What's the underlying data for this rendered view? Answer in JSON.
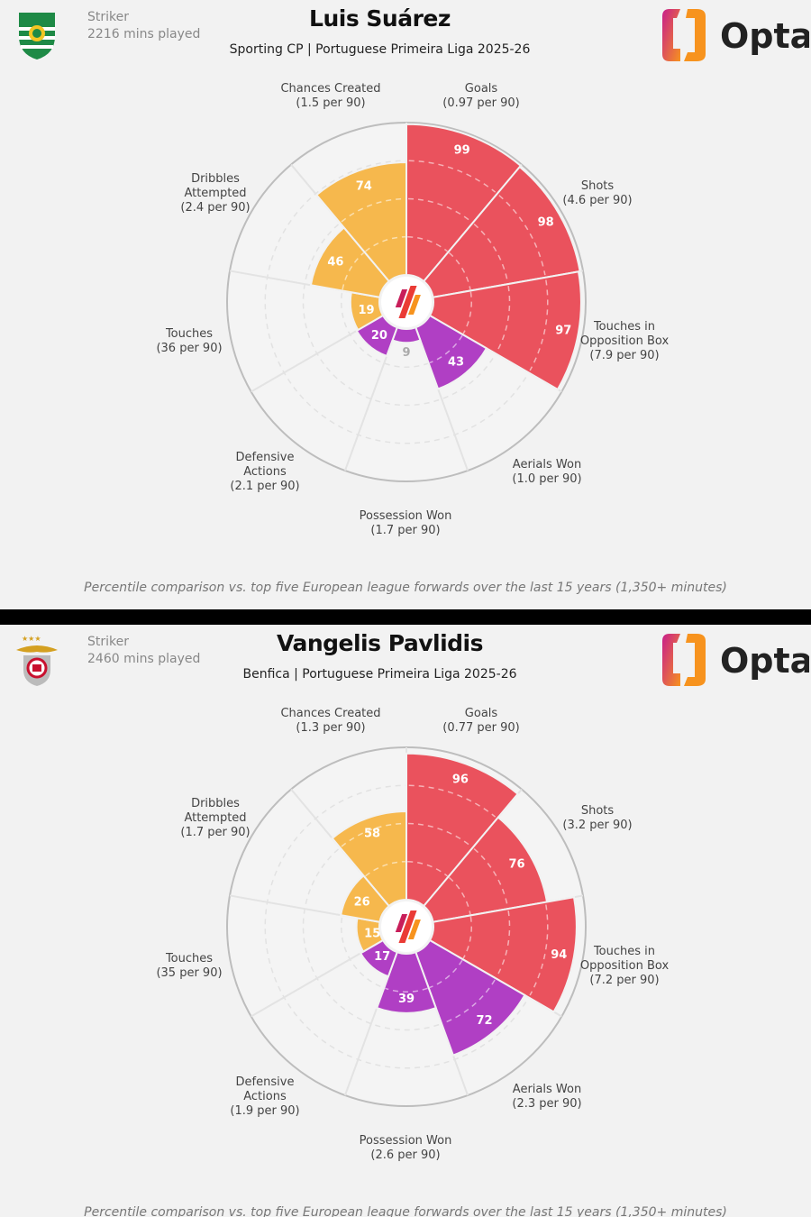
{
  "colors": {
    "attacking": "#ea525d",
    "possession": "#f6b84d",
    "defending": "#b03fc4",
    "background": "#f2f2f2"
  },
  "panels": [
    {
      "player": "Luis Suárez",
      "position": "Striker",
      "minutes": "2216 mins played",
      "subtitle": "Sporting CP | Portuguese Primeira Liga 2025-26",
      "crest": "sporting-cp-crest",
      "logo": "Opta",
      "footnote": "Percentile comparison vs. top five European league forwards over the last 15 years (1,350+ minutes)"
    },
    {
      "player": "Vangelis Pavlidis",
      "position": "Striker",
      "minutes": "2460 mins played",
      "subtitle": "Benfica | Portuguese Primeira Liga 2025-26",
      "crest": "benfica-crest",
      "logo": "Opta",
      "footnote": "Percentile comparison vs. top five European league forwards over the last 15 years (1,350+ minutes)"
    }
  ],
  "chart_data": [
    {
      "type": "pie",
      "subtype": "polar-area percentile",
      "range": [
        0,
        100
      ],
      "categories": [
        {
          "name": [
            "Goals"
          ],
          "per90": "(0.97 per 90)",
          "value": 99,
          "group": "attacking"
        },
        {
          "name": [
            "Shots"
          ],
          "per90": "(4.6 per 90)",
          "value": 98,
          "group": "attacking"
        },
        {
          "name": [
            "Touches in",
            "Opposition Box"
          ],
          "per90": "(7.9 per 90)",
          "value": 97,
          "group": "attacking"
        },
        {
          "name": [
            "Aerials Won"
          ],
          "per90": "(1.0 per 90)",
          "value": 43,
          "group": "defending"
        },
        {
          "name": [
            "Possession Won"
          ],
          "per90": "(1.7 per 90)",
          "value": 9,
          "group": "defending"
        },
        {
          "name": [
            "Defensive",
            "Actions"
          ],
          "per90": "(2.1 per 90)",
          "value": 20,
          "group": "defending"
        },
        {
          "name": [
            "Touches"
          ],
          "per90": "(36 per 90)",
          "value": 19,
          "group": "possession"
        },
        {
          "name": [
            "Dribbles",
            "Attempted"
          ],
          "per90": "(2.4 per 90)",
          "value": 46,
          "group": "possession"
        },
        {
          "name": [
            "Chances Created"
          ],
          "per90": "(1.5 per 90)",
          "value": 74,
          "group": "possession"
        }
      ]
    },
    {
      "type": "pie",
      "subtype": "polar-area percentile",
      "range": [
        0,
        100
      ],
      "categories": [
        {
          "name": [
            "Goals"
          ],
          "per90": "(0.77 per 90)",
          "value": 96,
          "group": "attacking"
        },
        {
          "name": [
            "Shots"
          ],
          "per90": "(3.2 per 90)",
          "value": 76,
          "group": "attacking"
        },
        {
          "name": [
            "Touches in",
            "Opposition Box"
          ],
          "per90": "(7.2 per 90)",
          "value": 94,
          "group": "attacking"
        },
        {
          "name": [
            "Aerials Won"
          ],
          "per90": "(2.3 per 90)",
          "value": 72,
          "group": "defending"
        },
        {
          "name": [
            "Possession Won"
          ],
          "per90": "(2.6 per 90)",
          "value": 39,
          "group": "defending"
        },
        {
          "name": [
            "Defensive",
            "Actions"
          ],
          "per90": "(1.9 per 90)",
          "value": 17,
          "group": "defending"
        },
        {
          "name": [
            "Touches"
          ],
          "per90": "(35 per 90)",
          "value": 15,
          "group": "possession"
        },
        {
          "name": [
            "Dribbles",
            "Attempted"
          ],
          "per90": "(1.7 per 90)",
          "value": 26,
          "group": "possession"
        },
        {
          "name": [
            "Chances Created"
          ],
          "per90": "(1.3 per 90)",
          "value": 58,
          "group": "possession"
        }
      ]
    }
  ]
}
